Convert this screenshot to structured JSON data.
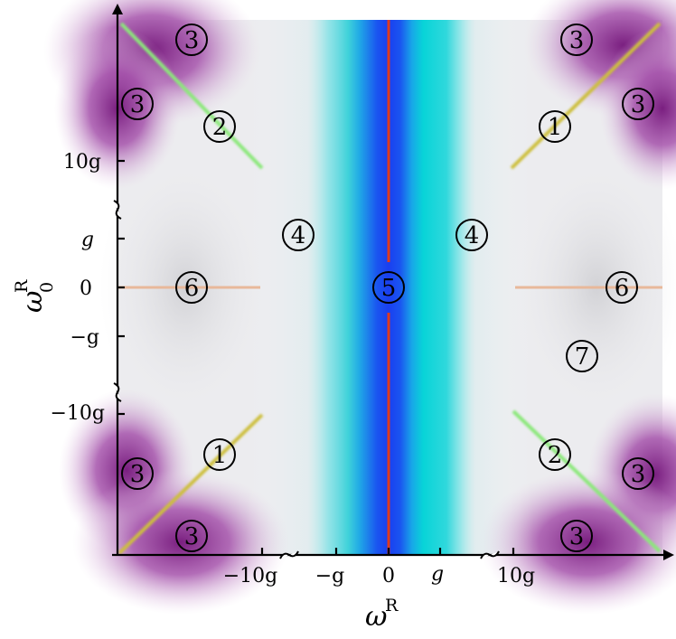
{
  "axes": {
    "x_title": "ω",
    "x_title_sup": "R",
    "y_title": "ω",
    "y_title_sub": "0",
    "y_title_sup": "R",
    "x_ticks": [
      "−10g",
      "−g",
      "0",
      "g",
      "10g"
    ],
    "y_ticks": [
      "10g",
      "g",
      "0",
      "−g",
      "−10g"
    ]
  },
  "regions": [
    {
      "id": "r3-tl-top",
      "label": "3"
    },
    {
      "id": "r3-tl-left",
      "label": "3"
    },
    {
      "id": "r2-upper-left",
      "label": "2"
    },
    {
      "id": "r3-tr-top",
      "label": "3"
    },
    {
      "id": "r3-tr-right",
      "label": "3"
    },
    {
      "id": "r1-upper-right",
      "label": "1"
    },
    {
      "id": "r4-left",
      "label": "4"
    },
    {
      "id": "r4-right",
      "label": "4"
    },
    {
      "id": "r6-left",
      "label": "6"
    },
    {
      "id": "r5-center",
      "label": "5"
    },
    {
      "id": "r6-right",
      "label": "6"
    },
    {
      "id": "r7",
      "label": "7"
    },
    {
      "id": "r1-lower-left",
      "label": "1"
    },
    {
      "id": "r2-lower-right",
      "label": "2"
    },
    {
      "id": "r3-bl-left",
      "label": "3"
    },
    {
      "id": "r3-bl-bottom",
      "label": "3"
    },
    {
      "id": "r3-br-right",
      "label": "3"
    },
    {
      "id": "r3-br-bottom",
      "label": "3"
    }
  ],
  "colors": {
    "center_band": "#1a4ef0",
    "cyan_band": "#1ed8d8",
    "purple_corner": "#7a1f80",
    "gray_background": "#dcdcdf",
    "red_line": "#e03a1e",
    "green_line": "#8be87a",
    "yellow_line": "#cdbf3c",
    "orange_line": "#e8b89a"
  }
}
